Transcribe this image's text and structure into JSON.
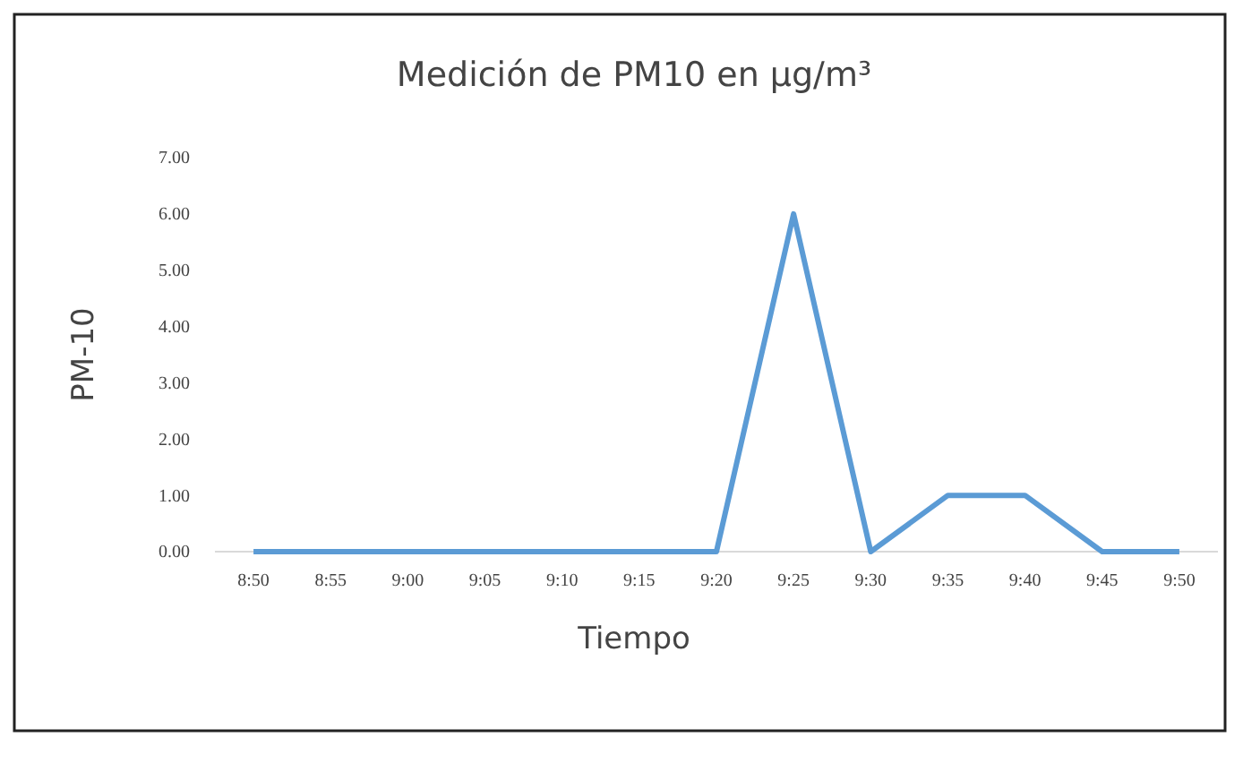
{
  "chart_data": {
    "type": "line",
    "title": "Medición de PM10 en µg/m³",
    "xlabel": "Tiempo",
    "ylabel": "PM-10",
    "categories": [
      "8:50",
      "8:55",
      "9:00",
      "9:05",
      "9:10",
      "9:15",
      "9:20",
      "9:25",
      "9:30",
      "9:35",
      "9:40",
      "9:45",
      "9:50"
    ],
    "series": [
      {
        "color": "#5b9bd5",
        "values": [
          0,
          0,
          0,
          0,
          0,
          0,
          0,
          6,
          0,
          1,
          1,
          0,
          0
        ]
      }
    ],
    "ylim": [
      0,
      7
    ],
    "yticks": [
      {
        "value": 0,
        "label": "0.00"
      },
      {
        "value": 1,
        "label": "1.00"
      },
      {
        "value": 2,
        "label": "2.00"
      },
      {
        "value": 3,
        "label": "3.00"
      },
      {
        "value": 4,
        "label": "4.00"
      },
      {
        "value": 5,
        "label": "5.00"
      },
      {
        "value": 6,
        "label": "6.00"
      },
      {
        "value": 7,
        "label": "7.00"
      }
    ],
    "grid": false,
    "legend": false,
    "marker": "none",
    "line_style": "solid"
  }
}
